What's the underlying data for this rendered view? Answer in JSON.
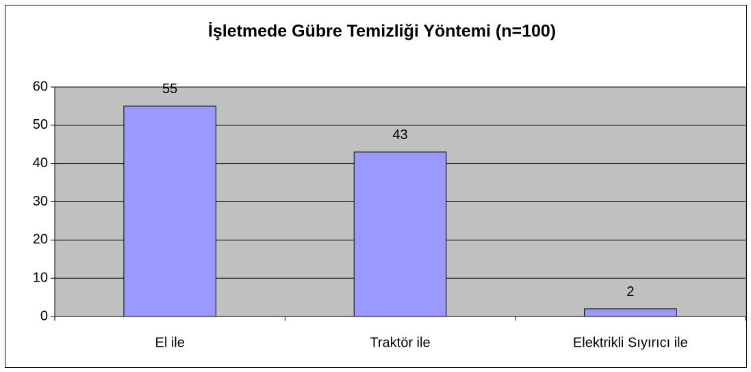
{
  "chart_data": {
    "type": "bar",
    "title": "İşletmede Gübre Temizliği Yöntemi (n=100)",
    "categories": [
      "El ile",
      "Traktör ile",
      "Elektrikli Sıyırıcı ile"
    ],
    "values": [
      55,
      43,
      2
    ],
    "color": "#9999ff",
    "plot_background": "#c0c0c0",
    "ylim": [
      0,
      60
    ],
    "yticks": [
      0,
      10,
      20,
      30,
      40,
      50,
      60
    ],
    "grid": true
  }
}
